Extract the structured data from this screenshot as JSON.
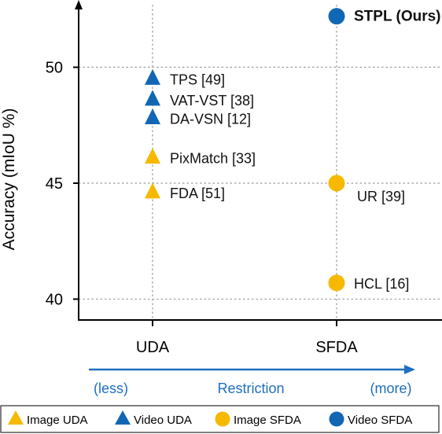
{
  "chart_data": {
    "type": "scatter",
    "ylabel": "Accuracy (mIoU %)",
    "categories": [
      "UDA",
      "SFDA"
    ],
    "yticks": [
      40,
      45,
      50
    ],
    "ylim": [
      39.1,
      52.9
    ],
    "grid": true,
    "highlight_color": "#e8231f",
    "arrow": {
      "label": "Restriction",
      "left_label": "(less)",
      "right_label": "(more)",
      "color": "#1e6fc0"
    },
    "series": [
      {
        "name": "Image UDA",
        "marker": "triangle",
        "color": "#f6b900",
        "points": [
          {
            "x": "UDA",
            "y": 44.6,
            "label": "FDA [51]"
          },
          {
            "x": "UDA",
            "y": 46.1,
            "label": "PixMatch [33]"
          }
        ]
      },
      {
        "name": "Video UDA",
        "marker": "triangle",
        "color": "#1267b4",
        "points": [
          {
            "x": "UDA",
            "y": 47.8,
            "label": "DA-VSN [12]"
          },
          {
            "x": "UDA",
            "y": 48.6,
            "label": "VAT-VST [38]"
          },
          {
            "x": "UDA",
            "y": 49.5,
            "label": "TPS [49]"
          }
        ]
      },
      {
        "name": "Image SFDA",
        "marker": "circle",
        "color": "#f6b900",
        "points": [
          {
            "x": "SFDA",
            "y": 45.0,
            "label": "UR [39]"
          },
          {
            "x": "SFDA",
            "y": 40.7,
            "label": "HCL [16]"
          }
        ]
      },
      {
        "name": "Video SFDA",
        "marker": "circle",
        "color": "#1267b4",
        "points": [
          {
            "x": "SFDA",
            "y": 52.2,
            "label": "STPL (Ours)",
            "highlight": true
          }
        ]
      }
    ]
  }
}
